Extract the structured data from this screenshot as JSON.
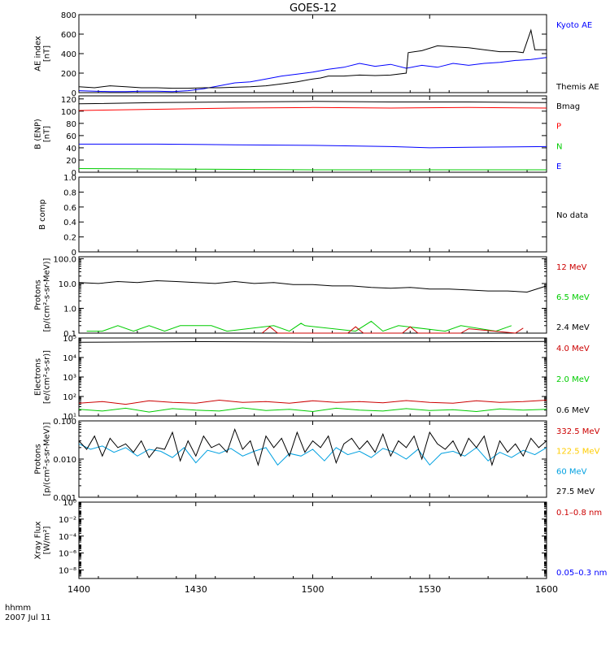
{
  "title": "GOES-12",
  "footer": {
    "time_label": "hhmm",
    "date_label": "2007 Jul 11"
  },
  "x_axis": {
    "ticks": [
      "1400",
      "1430",
      "1500",
      "1530",
      "1600"
    ],
    "range": [
      0,
      120
    ],
    "unit": "minutes"
  },
  "chart_data": [
    {
      "type": "line",
      "ylabel": [
        "AE index",
        "[nT]"
      ],
      "yscale": "linear",
      "ylim": [
        0,
        800
      ],
      "yticks": [
        0,
        200,
        400,
        600,
        800
      ],
      "ytick_labels": [
        "0",
        "200",
        "400",
        "600",
        "800"
      ],
      "legend": [
        {
          "label": "Kyoto AE",
          "color": "#0000ff"
        },
        {
          "label": "Themis AE",
          "color": "#000000"
        }
      ],
      "series": [
        {
          "name": "Kyoto AE",
          "color": "#0000ff",
          "x": [
            0,
            4,
            8,
            12,
            16,
            20,
            24,
            28,
            32,
            36,
            40,
            44,
            48,
            52,
            56,
            60,
            64,
            68,
            72,
            76,
            80,
            84,
            88,
            92,
            96,
            100,
            104,
            108,
            112,
            116,
            120
          ],
          "y": [
            20,
            15,
            10,
            10,
            15,
            15,
            10,
            20,
            40,
            70,
            100,
            110,
            140,
            170,
            190,
            210,
            240,
            260,
            300,
            270,
            290,
            250,
            280,
            260,
            300,
            280,
            300,
            310,
            330,
            340,
            360
          ]
        },
        {
          "name": "Themis AE",
          "color": "#000000",
          "x": [
            0,
            4,
            8,
            12,
            16,
            20,
            24,
            28,
            32,
            36,
            40,
            44,
            48,
            52,
            56,
            60,
            62,
            64,
            68,
            72,
            76,
            80,
            84,
            84.5,
            88,
            92,
            96,
            100,
            104,
            108,
            112,
            114,
            116,
            117,
            118,
            120
          ],
          "y": [
            60,
            50,
            70,
            60,
            50,
            50,
            45,
            45,
            50,
            50,
            55,
            60,
            70,
            90,
            110,
            140,
            150,
            170,
            170,
            180,
            175,
            180,
            200,
            410,
            430,
            480,
            470,
            460,
            440,
            420,
            420,
            410,
            640,
            440,
            440,
            440
          ]
        }
      ]
    },
    {
      "type": "line",
      "ylabel": [
        "B (ENP)",
        "[nT]"
      ],
      "yscale": "linear",
      "ylim": [
        0,
        125
      ],
      "yticks": [
        0,
        20,
        40,
        60,
        80,
        100,
        120
      ],
      "ytick_labels": [
        "0",
        "20",
        "40",
        "60",
        "80",
        "100",
        "120"
      ],
      "legend": [
        {
          "label": "Bmag",
          "color": "#000000"
        },
        {
          "label": "P",
          "color": "#ff0000"
        },
        {
          "label": "N",
          "color": "#00cc00"
        },
        {
          "label": "E",
          "color": "#0000ff"
        }
      ],
      "series": [
        {
          "name": "Bmag",
          "color": "#000000",
          "x": [
            0,
            20,
            40,
            60,
            80,
            100,
            120
          ],
          "y": [
            112,
            114,
            115,
            116,
            115,
            115,
            114
          ]
        },
        {
          "name": "P",
          "color": "#ff0000",
          "x": [
            0,
            20,
            40,
            60,
            80,
            100,
            120
          ],
          "y": [
            101,
            103,
            105,
            106,
            105,
            106,
            105
          ]
        },
        {
          "name": "E",
          "color": "#0000ff",
          "x": [
            0,
            20,
            40,
            60,
            80,
            90,
            100,
            120
          ],
          "y": [
            46,
            46,
            45,
            44,
            42,
            40,
            41,
            42
          ]
        },
        {
          "name": "N",
          "color": "#00cc00",
          "x": [
            0,
            30,
            60,
            90,
            120
          ],
          "y": [
            6,
            5,
            4,
            4,
            4
          ]
        }
      ]
    },
    {
      "type": "line",
      "ylabel": [
        "B comp"
      ],
      "yscale": "linear",
      "ylim": [
        0,
        1
      ],
      "yticks": [
        0,
        0.2,
        0.4,
        0.6,
        0.8,
        1.0
      ],
      "ytick_labels": [
        "0",
        "0.2",
        "0.4",
        "0.6",
        "0.8",
        "1.0"
      ],
      "legend": [
        {
          "label": "No data",
          "color": "#000000"
        }
      ],
      "series": []
    },
    {
      "type": "line",
      "ylabel": [
        "Protons",
        "[p/(cm²-s-sr-MeV)]"
      ],
      "yscale": "log",
      "ylim": [
        0.1,
        120
      ],
      "yticks": [
        0.1,
        1,
        10,
        100
      ],
      "ytick_labels": [
        "0.1",
        "1.0",
        "10.0",
        "100.0"
      ],
      "legend": [
        {
          "label": "12 MeV",
          "color": "#cc0000"
        },
        {
          "label": "6.5 MeV",
          "color": "#00cc00"
        },
        {
          "label": "2.4 MeV",
          "color": "#000000"
        }
      ],
      "series": [
        {
          "name": "2.4 MeV",
          "color": "#000000",
          "x": [
            0,
            5,
            10,
            15,
            20,
            25,
            30,
            35,
            40,
            45,
            50,
            55,
            60,
            65,
            70,
            75,
            80,
            85,
            90,
            95,
            100,
            105,
            110,
            115,
            120
          ],
          "y": [
            11,
            10,
            12,
            11,
            13,
            12,
            11,
            10,
            12,
            10,
            11,
            9,
            9,
            8,
            8,
            7,
            6.5,
            7,
            6,
            6,
            5.5,
            5,
            5,
            4.5,
            8
          ]
        },
        {
          "name": "6.5 MeV",
          "color": "#00cc00",
          "x": [
            2,
            6,
            10,
            14,
            18,
            22,
            26,
            34,
            38,
            50,
            54,
            57,
            58,
            71,
            75,
            78,
            82,
            94,
            98,
            107,
            111
          ],
          "y": [
            0.12,
            0.12,
            0.2,
            0.12,
            0.2,
            0.12,
            0.2,
            0.2,
            0.12,
            0.2,
            0.12,
            0.25,
            0.2,
            0.12,
            0.3,
            0.12,
            0.2,
            0.12,
            0.2,
            0.12,
            0.2
          ]
        },
        {
          "name": "12 MeV",
          "color": "#cc0000",
          "x": [
            47,
            49,
            51,
            69,
            71,
            73,
            83,
            85,
            87,
            98,
            100,
            112,
            114
          ],
          "y": [
            0.1,
            0.18,
            0.1,
            0.1,
            0.18,
            0.1,
            0.1,
            0.18,
            0.1,
            0.1,
            0.15,
            0.1,
            0.16
          ]
        }
      ]
    },
    {
      "type": "line",
      "ylabel": [
        "Electrons",
        "[e/(cm²-s-sr)]"
      ],
      "yscale": "log",
      "ylim": [
        10,
        100000
      ],
      "yticks": [
        10,
        100,
        1000,
        10000,
        100000
      ],
      "ytick_labels": [
        "10¹",
        "10²",
        "10³",
        "10⁴",
        "10⁵"
      ],
      "legend": [
        {
          "label": "4.0 MeV",
          "color": "#cc0000"
        },
        {
          "label": "2.0 MeV",
          "color": "#00cc00"
        },
        {
          "label": "0.6 MeV",
          "color": "#000000"
        }
      ],
      "series": [
        {
          "name": "0.6 MeV",
          "color": "#000000",
          "x": [
            0,
            30,
            60,
            90,
            120
          ],
          "y": [
            60000,
            65000,
            62000,
            64000,
            66000
          ]
        },
        {
          "name": "4.0 MeV",
          "color": "#cc0000",
          "x": [
            0,
            6,
            12,
            18,
            24,
            30,
            36,
            42,
            48,
            54,
            60,
            66,
            72,
            78,
            84,
            90,
            96,
            102,
            108,
            114,
            120
          ],
          "y": [
            45,
            55,
            40,
            60,
            50,
            45,
            65,
            50,
            55,
            45,
            60,
            50,
            55,
            48,
            62,
            50,
            45,
            60,
            50,
            55,
            65
          ]
        },
        {
          "name": "2.0 MeV",
          "color": "#00cc00",
          "x": [
            0,
            6,
            12,
            18,
            24,
            30,
            36,
            42,
            48,
            54,
            60,
            66,
            72,
            78,
            84,
            90,
            96,
            102,
            108,
            114,
            120
          ],
          "y": [
            22,
            18,
            25,
            16,
            24,
            20,
            18,
            26,
            19,
            22,
            17,
            25,
            20,
            18,
            24,
            19,
            21,
            17,
            23,
            20,
            22
          ]
        }
      ]
    },
    {
      "type": "line",
      "ylabel": [
        "Protons",
        "[p/(cm²-s-sr-MeV)]"
      ],
      "yscale": "log",
      "ylim": [
        0.001,
        0.1
      ],
      "yticks": [
        0.001,
        0.01,
        0.1
      ],
      "ytick_labels": [
        "0.001",
        "0.010",
        "0.100"
      ],
      "legend": [
        {
          "label": "332.5 MeV",
          "color": "#cc0000"
        },
        {
          "label": "122.5 MeV",
          "color": "#ffcc00"
        },
        {
          "label": "60 MeV",
          "color": "#00a0e0"
        },
        {
          "label": "27.5 MeV",
          "color": "#000000"
        }
      ],
      "series": [
        {
          "name": "60 MeV",
          "color": "#00a0e0",
          "x": [
            0,
            3,
            6,
            9,
            12,
            15,
            18,
            21,
            24,
            27,
            30,
            33,
            36,
            39,
            42,
            45,
            48,
            51,
            54,
            57,
            60,
            63,
            66,
            69,
            72,
            75,
            78,
            81,
            84,
            87,
            90,
            93,
            96,
            99,
            102,
            105,
            108,
            111,
            114,
            117,
            120
          ],
          "y": [
            0.025,
            0.018,
            0.022,
            0.015,
            0.02,
            0.012,
            0.018,
            0.016,
            0.011,
            0.02,
            0.008,
            0.017,
            0.014,
            0.019,
            0.012,
            0.016,
            0.02,
            0.007,
            0.014,
            0.012,
            0.018,
            0.009,
            0.02,
            0.013,
            0.016,
            0.011,
            0.019,
            0.015,
            0.01,
            0.018,
            0.007,
            0.014,
            0.016,
            0.012,
            0.02,
            0.009,
            0.015,
            0.011,
            0.017,
            0.013,
            0.02
          ]
        },
        {
          "name": "27.5 MeV",
          "color": "#000000",
          "x": [
            0,
            2,
            4,
            6,
            8,
            10,
            12,
            14,
            16,
            18,
            20,
            22,
            24,
            26,
            28,
            30,
            32,
            34,
            36,
            38,
            40,
            42,
            44,
            46,
            48,
            50,
            52,
            54,
            56,
            58,
            60,
            62,
            64,
            66,
            68,
            70,
            72,
            74,
            76,
            78,
            80,
            82,
            84,
            86,
            88,
            90,
            92,
            94,
            96,
            98,
            100,
            102,
            104,
            106,
            108,
            110,
            112,
            114,
            116,
            118,
            120
          ],
          "y": [
            0.03,
            0.018,
            0.04,
            0.012,
            0.035,
            0.02,
            0.025,
            0.015,
            0.03,
            0.011,
            0.02,
            0.018,
            0.05,
            0.009,
            0.03,
            0.012,
            0.04,
            0.02,
            0.025,
            0.015,
            0.06,
            0.018,
            0.03,
            0.007,
            0.04,
            0.02,
            0.035,
            0.012,
            0.05,
            0.015,
            0.03,
            0.02,
            0.04,
            0.008,
            0.025,
            0.035,
            0.018,
            0.03,
            0.015,
            0.045,
            0.012,
            0.03,
            0.02,
            0.04,
            0.01,
            0.05,
            0.025,
            0.018,
            0.03,
            0.012,
            0.035,
            0.02,
            0.04,
            0.007,
            0.03,
            0.015,
            0.025,
            0.012,
            0.035,
            0.02,
            0.03
          ]
        }
      ]
    },
    {
      "type": "line",
      "ylabel": [
        "Xray Flux",
        "[W/m²]"
      ],
      "yscale": "log",
      "ylim": [
        1e-09,
        1
      ],
      "yticks": [
        1e-08,
        1e-06,
        0.0001,
        0.01,
        1
      ],
      "ytick_labels": [
        "10⁻⁸",
        "10⁻⁶",
        "10⁻⁴",
        "10⁻²",
        "10⁰"
      ],
      "legend": [
        {
          "label": "0.1–0.8 nm",
          "color": "#cc0000"
        },
        {
          "label": "0.05–0.3 nm",
          "color": "#0000ff"
        }
      ],
      "series": []
    }
  ]
}
